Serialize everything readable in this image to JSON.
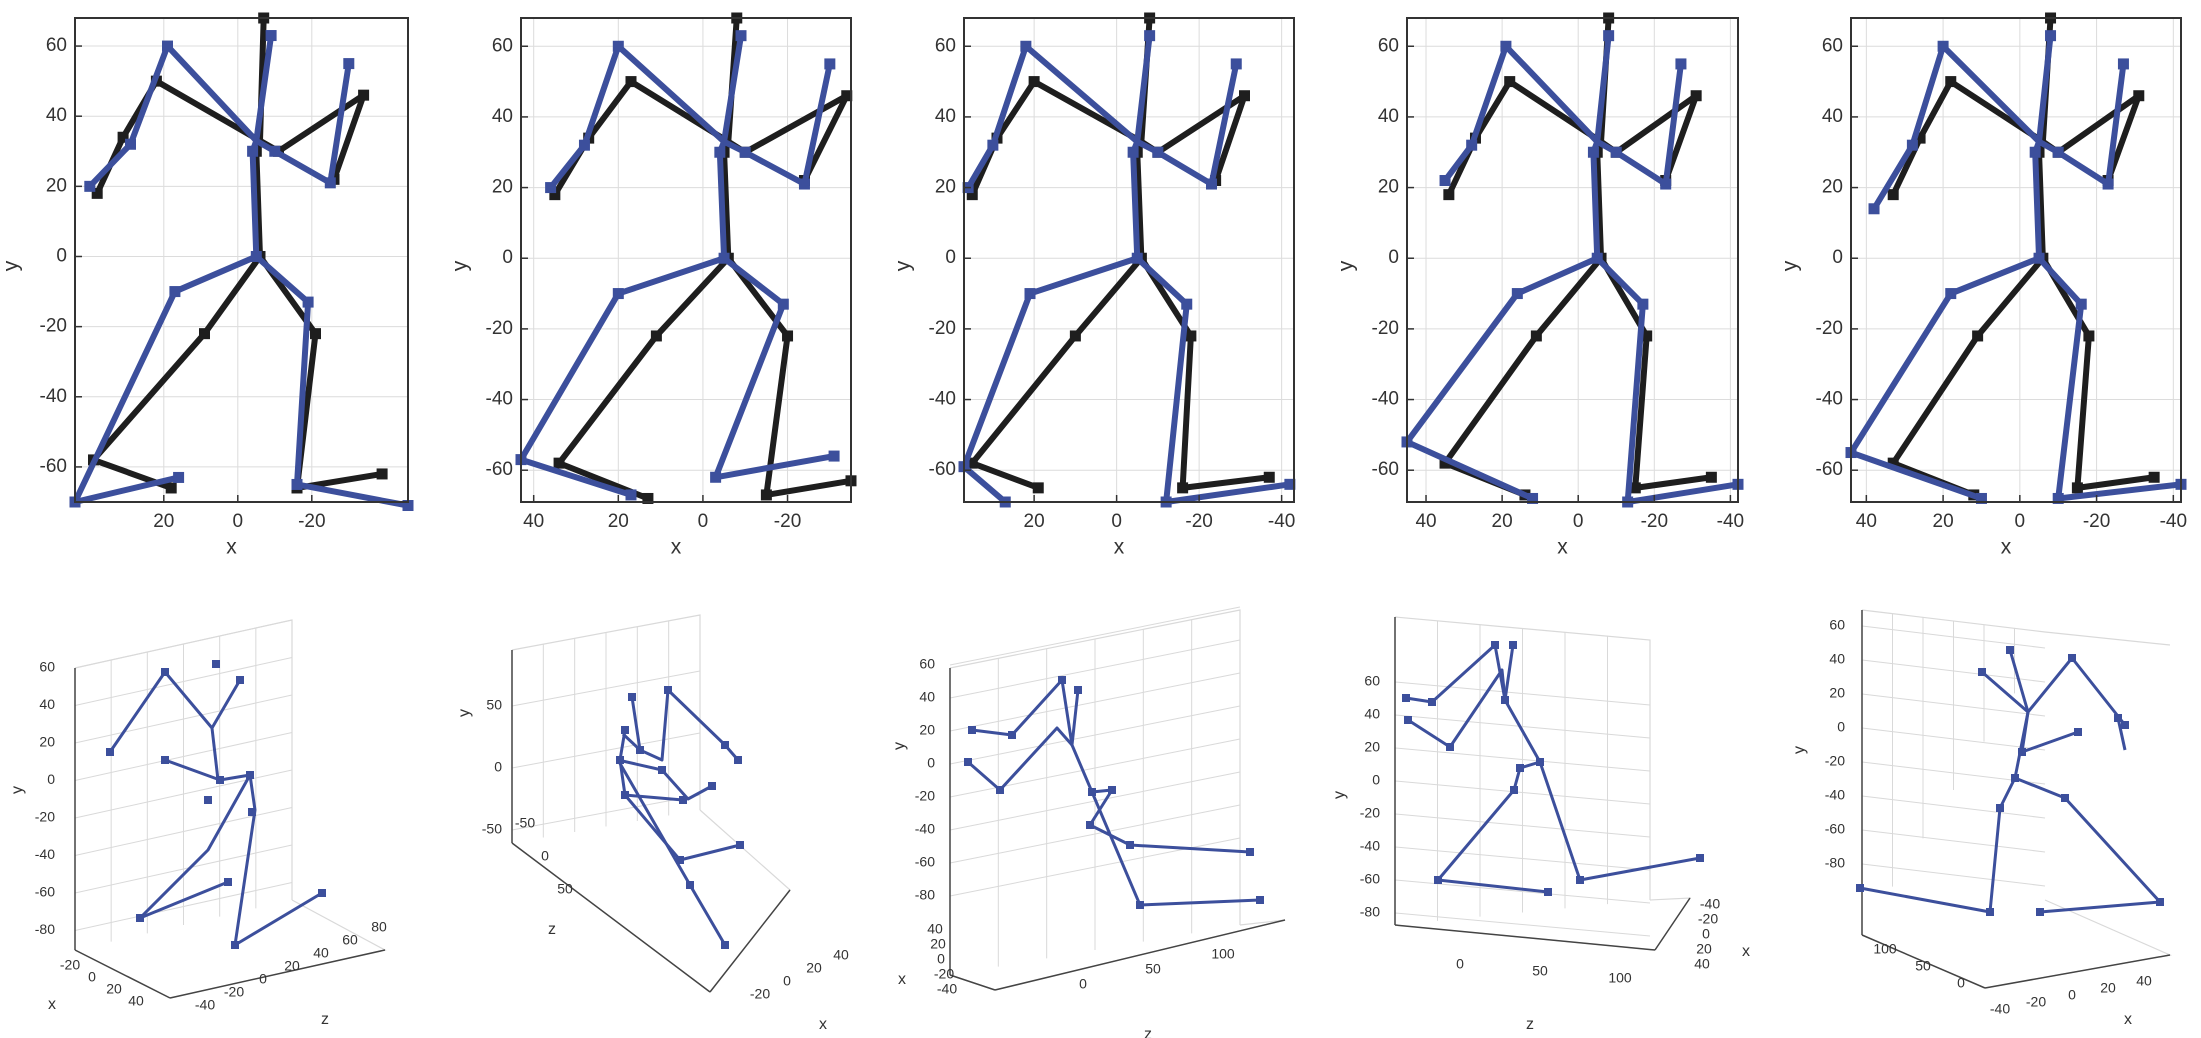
{
  "colors": {
    "black_skeleton": "#1e1e1e",
    "blue_skeleton": "#3c4f9c",
    "grid": "#dcdcdc",
    "axis": "#333333"
  },
  "chart_data": [
    {
      "type": "line",
      "panel": "top-1",
      "xlabel": "x",
      "ylabel": "y",
      "xlim": [
        44,
        -46
      ],
      "ylim": [
        -70,
        68
      ],
      "x_reversed": true,
      "xticks": [
        20,
        0,
        -20
      ],
      "yticks": [
        60,
        40,
        20,
        0,
        -20,
        -40,
        -60
      ],
      "series": [
        {
          "color": "#1e1e1e",
          "points": {
            "head": [
              -7,
              68
            ],
            "neck": [
              -6,
              33
            ],
            "thorax": [
              -5,
              30
            ],
            "pelvis": [
              -6,
              0
            ],
            "l_sho": [
              22,
              50
            ],
            "l_elb": [
              31,
              34
            ],
            "l_wri": [
              38,
              18
            ],
            "r_sho": [
              -11,
              30
            ],
            "r_elb": [
              -34,
              46
            ],
            "r_wri": [
              -26,
              22
            ],
            "l_hip": [
              -6,
              0
            ],
            "l_knee": [
              9,
              -22
            ],
            "l_ank": [
              39,
              -58
            ],
            "l_toe": [
              18,
              -66
            ],
            "r_hip": [
              -6,
              0
            ],
            "r_knee": [
              -21,
              -22
            ],
            "r_ank": [
              -16,
              -66
            ],
            "r_toe": [
              -39,
              -62
            ]
          }
        },
        {
          "color": "#3c4f9c",
          "points": {
            "head": [
              -9,
              63
            ],
            "neck": [
              -5,
              33
            ],
            "thorax": [
              -4,
              30
            ],
            "pelvis": [
              -5,
              0
            ],
            "l_sho": [
              19,
              60
            ],
            "l_elb": [
              29,
              32
            ],
            "l_wri": [
              40,
              20
            ],
            "r_sho": [
              -10,
              30
            ],
            "r_elb": [
              -25,
              21
            ],
            "r_wri": [
              -30,
              55
            ],
            "l_hip": [
              -5,
              0
            ],
            "l_knee": [
              17,
              -10
            ],
            "l_ank": [
              44,
              -70
            ],
            "l_toe": [
              16,
              -63
            ],
            "r_hip": [
              -5,
              0
            ],
            "r_knee": [
              -19,
              -13
            ],
            "r_ank": [
              -16,
              -65
            ],
            "r_toe": [
              -46,
              -71
            ]
          }
        }
      ]
    },
    {
      "type": "line",
      "panel": "top-2",
      "xlabel": "x",
      "ylabel": "y",
      "xlim": [
        43,
        -35
      ],
      "ylim": [
        -69,
        68
      ],
      "x_reversed": true,
      "xticks": [
        40,
        20,
        0,
        -20
      ],
      "yticks": [
        60,
        40,
        20,
        0,
        -20,
        -40,
        -60
      ],
      "series": [
        {
          "color": "#1e1e1e",
          "points": {
            "head": [
              -8,
              68
            ],
            "neck": [
              -6,
              33
            ],
            "thorax": [
              -5,
              30
            ],
            "pelvis": [
              -6,
              0
            ],
            "l_sho": [
              17,
              50
            ],
            "l_elb": [
              27,
              34
            ],
            "l_wri": [
              35,
              18
            ],
            "r_sho": [
              -10,
              30
            ],
            "r_elb": [
              -34,
              46
            ],
            "r_wri": [
              -24,
              22
            ],
            "l_hip": [
              -6,
              0
            ],
            "l_knee": [
              11,
              -22
            ],
            "l_ank": [
              34,
              -58
            ],
            "l_toe": [
              13,
              -68
            ],
            "r_hip": [
              -6,
              0
            ],
            "r_knee": [
              -20,
              -22
            ],
            "r_ank": [
              -15,
              -67
            ],
            "r_toe": [
              -35,
              -63
            ]
          }
        },
        {
          "color": "#3c4f9c",
          "points": {
            "head": [
              -9,
              63
            ],
            "neck": [
              -5,
              33
            ],
            "thorax": [
              -4,
              30
            ],
            "pelvis": [
              -5,
              0
            ],
            "l_sho": [
              20,
              60
            ],
            "l_elb": [
              28,
              32
            ],
            "l_wri": [
              36,
              20
            ],
            "r_sho": [
              -10,
              30
            ],
            "r_elb": [
              -24,
              21
            ],
            "r_wri": [
              -30,
              55
            ],
            "l_hip": [
              -5,
              0
            ],
            "l_knee": [
              20,
              -10
            ],
            "l_ank": [
              43,
              -57
            ],
            "l_toe": [
              17,
              -67
            ],
            "r_hip": [
              -5,
              0
            ],
            "r_knee": [
              -19,
              -13
            ],
            "r_ank": [
              -3,
              -62
            ],
            "r_toe": [
              -31,
              -56
            ]
          }
        }
      ]
    },
    {
      "type": "line",
      "panel": "top-3",
      "xlabel": "x",
      "ylabel": "y",
      "xlim": [
        37,
        -43
      ],
      "ylim": [
        -69,
        68
      ],
      "x_reversed": true,
      "xticks": [
        20,
        0,
        -20,
        -40
      ],
      "yticks": [
        60,
        40,
        20,
        0,
        -20,
        -40,
        -60
      ],
      "series": [
        {
          "color": "#1e1e1e",
          "points": {
            "head": [
              -8,
              68
            ],
            "neck": [
              -6,
              33
            ],
            "thorax": [
              -5,
              30
            ],
            "pelvis": [
              -6,
              0
            ],
            "l_sho": [
              20,
              50
            ],
            "l_elb": [
              29,
              34
            ],
            "l_wri": [
              35,
              18
            ],
            "r_sho": [
              -10,
              30
            ],
            "r_elb": [
              -31,
              46
            ],
            "r_wri": [
              -24,
              22
            ],
            "l_hip": [
              -6,
              0
            ],
            "l_knee": [
              10,
              -22
            ],
            "l_ank": [
              35,
              -58
            ],
            "l_toe": [
              19,
              -65
            ],
            "r_hip": [
              -6,
              0
            ],
            "r_knee": [
              -18,
              -22
            ],
            "r_ank": [
              -16,
              -65
            ],
            "r_toe": [
              -37,
              -62
            ]
          }
        },
        {
          "color": "#3c4f9c",
          "points": {
            "head": [
              -8,
              63
            ],
            "neck": [
              -5,
              33
            ],
            "thorax": [
              -4,
              30
            ],
            "pelvis": [
              -5,
              0
            ],
            "l_sho": [
              22,
              60
            ],
            "l_elb": [
              30,
              32
            ],
            "l_wri": [
              36,
              20
            ],
            "r_sho": [
              -10,
              30
            ],
            "r_elb": [
              -23,
              21
            ],
            "r_wri": [
              -29,
              55
            ],
            "l_hip": [
              -5,
              0
            ],
            "l_knee": [
              21,
              -10
            ],
            "l_ank": [
              37,
              -59
            ],
            "l_toe": [
              27,
              -69
            ],
            "r_hip": [
              -5,
              0
            ],
            "r_knee": [
              -17,
              -13
            ],
            "r_ank": [
              -12,
              -69
            ],
            "r_toe": [
              -42,
              -64
            ]
          }
        }
      ]
    },
    {
      "type": "line",
      "panel": "top-4",
      "xlabel": "x",
      "ylabel": "y",
      "xlim": [
        45,
        -42
      ],
      "ylim": [
        -69,
        68
      ],
      "x_reversed": true,
      "xticks": [
        40,
        20,
        0,
        -20,
        -40
      ],
      "yticks": [
        60,
        40,
        20,
        0,
        -20,
        -40,
        -60
      ],
      "series": [
        {
          "color": "#1e1e1e",
          "points": {
            "head": [
              -8,
              68
            ],
            "neck": [
              -6,
              33
            ],
            "thorax": [
              -5,
              30
            ],
            "pelvis": [
              -6,
              0
            ],
            "l_sho": [
              18,
              50
            ],
            "l_elb": [
              27,
              34
            ],
            "l_wri": [
              34,
              18
            ],
            "r_sho": [
              -10,
              30
            ],
            "r_elb": [
              -31,
              46
            ],
            "r_wri": [
              -23,
              22
            ],
            "l_hip": [
              -6,
              0
            ],
            "l_knee": [
              11,
              -22
            ],
            "l_ank": [
              35,
              -58
            ],
            "l_toe": [
              14,
              -67
            ],
            "r_hip": [
              -6,
              0
            ],
            "r_knee": [
              -18,
              -22
            ],
            "r_ank": [
              -15,
              -65
            ],
            "r_toe": [
              -35,
              -62
            ]
          }
        },
        {
          "color": "#3c4f9c",
          "points": {
            "head": [
              -8,
              63
            ],
            "neck": [
              -5,
              33
            ],
            "thorax": [
              -4,
              30
            ],
            "pelvis": [
              -5,
              0
            ],
            "l_sho": [
              19,
              60
            ],
            "l_elb": [
              28,
              32
            ],
            "l_wri": [
              35,
              22
            ],
            "r_sho": [
              -10,
              30
            ],
            "r_elb": [
              -23,
              21
            ],
            "r_wri": [
              -27,
              55
            ],
            "l_hip": [
              -5,
              0
            ],
            "l_knee": [
              16,
              -10
            ],
            "l_ank": [
              45,
              -52
            ],
            "l_toe": [
              12,
              -68
            ],
            "r_hip": [
              -5,
              0
            ],
            "r_knee": [
              -17,
              -13
            ],
            "r_ank": [
              -13,
              -69
            ],
            "r_toe": [
              -42,
              -64
            ]
          }
        }
      ]
    },
    {
      "type": "line",
      "panel": "top-5",
      "xlabel": "x",
      "ylabel": "y",
      "xlim": [
        44,
        -42
      ],
      "ylim": [
        -69,
        68
      ],
      "x_reversed": true,
      "xticks": [
        40,
        20,
        0,
        -20,
        -40
      ],
      "yticks": [
        60,
        40,
        20,
        0,
        -20,
        -40,
        -60
      ],
      "series": [
        {
          "color": "#1e1e1e",
          "points": {
            "head": [
              -8,
              68
            ],
            "neck": [
              -6,
              33
            ],
            "thorax": [
              -5,
              30
            ],
            "pelvis": [
              -6,
              0
            ],
            "l_sho": [
              18,
              50
            ],
            "l_elb": [
              26,
              34
            ],
            "l_wri": [
              33,
              18
            ],
            "r_sho": [
              -10,
              30
            ],
            "r_elb": [
              -31,
              46
            ],
            "r_wri": [
              -23,
              22
            ],
            "l_hip": [
              -6,
              0
            ],
            "l_knee": [
              11,
              -22
            ],
            "l_ank": [
              33,
              -58
            ],
            "l_toe": [
              12,
              -67
            ],
            "r_hip": [
              -6,
              0
            ],
            "r_knee": [
              -18,
              -22
            ],
            "r_ank": [
              -15,
              -65
            ],
            "r_toe": [
              -35,
              -62
            ]
          }
        },
        {
          "color": "#3c4f9c",
          "points": {
            "head": [
              -8,
              63
            ],
            "neck": [
              -5,
              33
            ],
            "thorax": [
              -4,
              30
            ],
            "pelvis": [
              -5,
              0
            ],
            "l_sho": [
              20,
              60
            ],
            "l_elb": [
              28,
              32
            ],
            "l_wri": [
              38,
              14
            ],
            "r_sho": [
              -10,
              30
            ],
            "r_elb": [
              -23,
              21
            ],
            "r_wri": [
              -27,
              55
            ],
            "l_hip": [
              -5,
              0
            ],
            "l_knee": [
              18,
              -10
            ],
            "l_ank": [
              44,
              -55
            ],
            "l_toe": [
              10,
              -68
            ],
            "r_hip": [
              -5,
              0
            ],
            "r_knee": [
              -16,
              -13
            ],
            "r_ank": [
              -10,
              -68
            ],
            "r_toe": [
              -42,
              -64
            ]
          }
        }
      ]
    }
  ],
  "chart3d": [
    {
      "panel": "bottom-1",
      "labels": [
        "y",
        "x",
        "z"
      ],
      "yticks": [
        "60",
        "40",
        "20",
        "0",
        "-20",
        "-40",
        "-60",
        "-80"
      ],
      "xticks": [
        "-20",
        "0",
        "20",
        "40"
      ],
      "zticks": [
        "-40",
        "-20",
        "0",
        "20",
        "40",
        "60",
        "80"
      ]
    },
    {
      "panel": "bottom-2",
      "labels": [
        "y",
        "z",
        "x"
      ],
      "yticks": [
        "50",
        "0",
        "-50"
      ],
      "zticks": [
        "50",
        "0",
        "-50"
      ],
      "xticks": [
        "-20",
        "0",
        "20",
        "40"
      ]
    },
    {
      "panel": "bottom-3",
      "labels": [
        "y",
        "x",
        "z"
      ],
      "yticks": [
        "60",
        "40",
        "20",
        "0",
        "-20",
        "-40",
        "-60",
        "-80"
      ],
      "xticks": [
        "40",
        "20",
        "0",
        "-20",
        "-40"
      ],
      "zticks": [
        "0",
        "50",
        "100"
      ]
    },
    {
      "panel": "bottom-4",
      "labels": [
        "y",
        "z",
        "x"
      ],
      "yticks": [
        "60",
        "40",
        "20",
        "0",
        "-20",
        "-40",
        "-60",
        "-80"
      ],
      "zticks": [
        "0",
        "50",
        "100"
      ],
      "xticks": [
        "-40",
        "-20",
        "0",
        "20",
        "40"
      ]
    },
    {
      "panel": "bottom-5",
      "labels": [
        "y",
        "x"
      ],
      "yticks": [
        "60",
        "40",
        "20",
        "0",
        "-20",
        "-40",
        "-60",
        "-80"
      ],
      "zticks": [
        "100",
        "50",
        "0"
      ],
      "xticks": [
        "-40",
        "-20",
        "0",
        "20",
        "40"
      ]
    }
  ]
}
